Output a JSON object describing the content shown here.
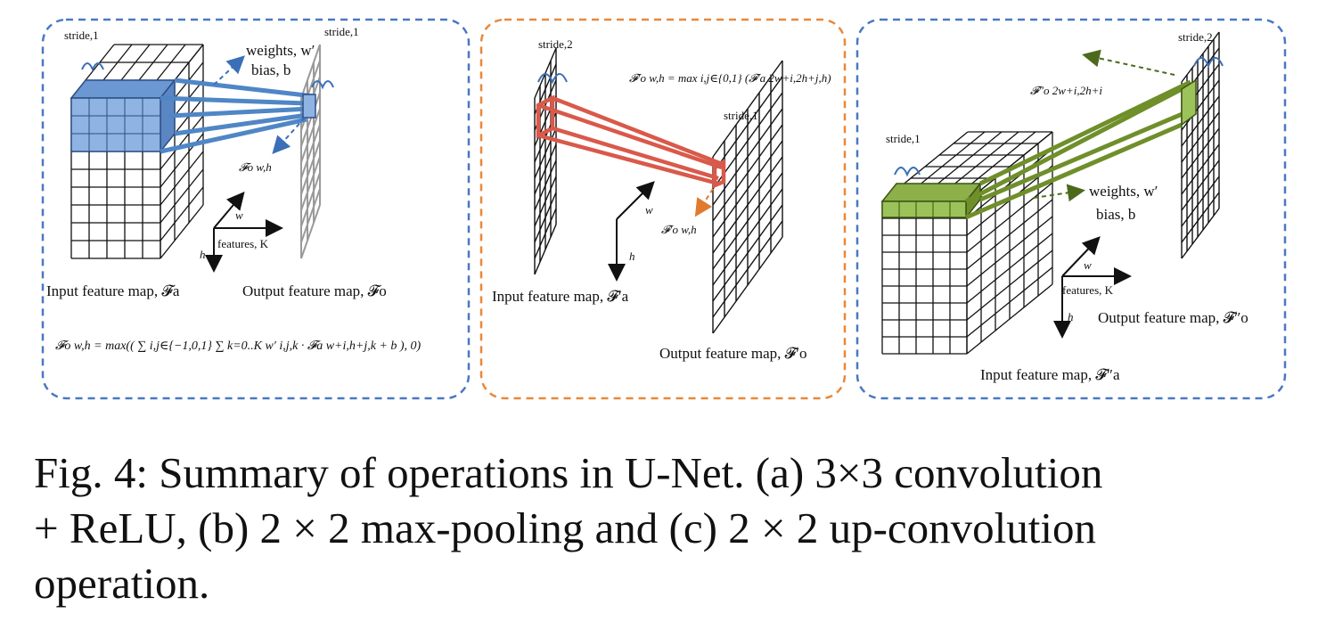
{
  "panel_a": {
    "stride_input": "stride,1",
    "stride_output": "stride,1",
    "weights": "weights, w′",
    "bias": "bias, b",
    "output_pixel": "𝓕o w,h",
    "axis_w": "w",
    "axis_h": "h",
    "axis_k": "features, K",
    "input_label": "Input feature map, 𝓕a",
    "output_label": "Output feature map, 𝓕o",
    "formula": "𝓕o w,h = max(( ∑ i,j∈{−1,0,1} ∑ k=0..K w′ i,j,k · 𝓕a w+i,h+j,k + b ), 0)"
  },
  "panel_b": {
    "stride_input": "stride,2",
    "stride_output": "stride,1",
    "formula": "𝓕′o w,h = max i,j∈{0,1} (𝓕′a 2w+i,2h+j,h)",
    "output_pixel": "𝓕′o w,h",
    "axis_w": "w",
    "axis_h": "h",
    "input_label": "Input feature map, 𝓕′a",
    "output_label": "Output feature map, 𝓕′o"
  },
  "panel_c": {
    "stride_input": "stride,1",
    "stride_output": "stride,2",
    "output_pixel": "𝓕″o 2w+i,2h+i",
    "weights": "weights, w′",
    "bias": "bias, b",
    "axis_w": "w",
    "axis_h": "h",
    "axis_k": "features, K",
    "output_label": "Output feature map, 𝓕″o",
    "input_label": "Input feature map, 𝓕″a"
  },
  "colors": {
    "panel_a_border": "#4a78c2",
    "panel_b_border": "#e8883a",
    "panel_c_border": "#4a78c2",
    "conv_kernel": "#4f86c6",
    "pool_kernel": "#d9594a",
    "upconv_kernel": "#6f8f2a"
  },
  "caption": {
    "line1": "Fig. 4: Summary of operations in U-Net. (a) 3×3 convolution",
    "line2": "+ ReLU, (b) 2 × 2 max-pooling and (c) 2 × 2 up-convolution",
    "line3": "operation."
  }
}
